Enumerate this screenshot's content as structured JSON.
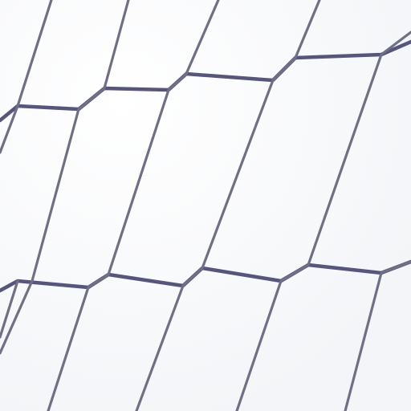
{
  "scene": {
    "subject": "netting",
    "palette": {
      "background": "#fbfcfd",
      "net_cord": "#56557e",
      "net_cord_light": "#6f6f86",
      "highlight": "#f4f6fa"
    }
  }
}
